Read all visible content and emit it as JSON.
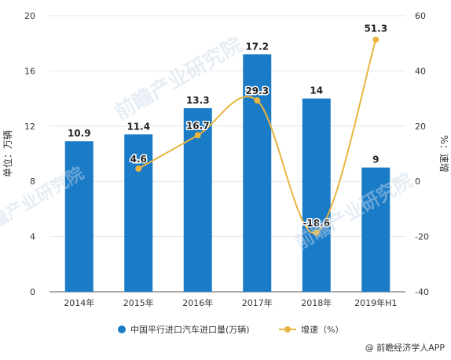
{
  "chart_data": {
    "type": "bar",
    "title": "",
    "categories": [
      "2014年",
      "2015年",
      "2016年",
      "2017年",
      "2018年",
      "2019年H1"
    ],
    "series": [
      {
        "name": "中国平行进口汽车进口量(万辆)",
        "type": "bar",
        "axis": "left",
        "values": [
          10.9,
          11.4,
          13.3,
          17.2,
          14,
          9
        ],
        "labels": [
          "10.9",
          "11.4",
          "13.3",
          "17.2",
          "14",
          "9"
        ]
      },
      {
        "name": "增速（%）",
        "type": "line",
        "axis": "right",
        "values": [
          null,
          4.6,
          16.7,
          29.3,
          -18.6,
          51.3
        ],
        "labels": [
          "",
          "4.6",
          "16.7",
          "29.3",
          "-18.6",
          "51.3"
        ]
      }
    ],
    "ylabel": "单位：万辆",
    "ylabel_right": "%：速增",
    "ylim": [
      0,
      20
    ],
    "yticks": [
      "0",
      "4",
      "8",
      "12",
      "16",
      "20"
    ],
    "ylim_right": [
      -40,
      60
    ],
    "yticks_right": [
      "-40",
      "-20",
      "0",
      "20",
      "40",
      "60"
    ],
    "grid": true,
    "legend_position": "bottom",
    "colors": {
      "bar": "#1a7bc6",
      "line": "#e9b53e",
      "grid": "#e6e6e6",
      "axis": "#555555"
    }
  },
  "source": "@ 前瞻经济学人APP",
  "watermark": "前瞻产业研究院"
}
